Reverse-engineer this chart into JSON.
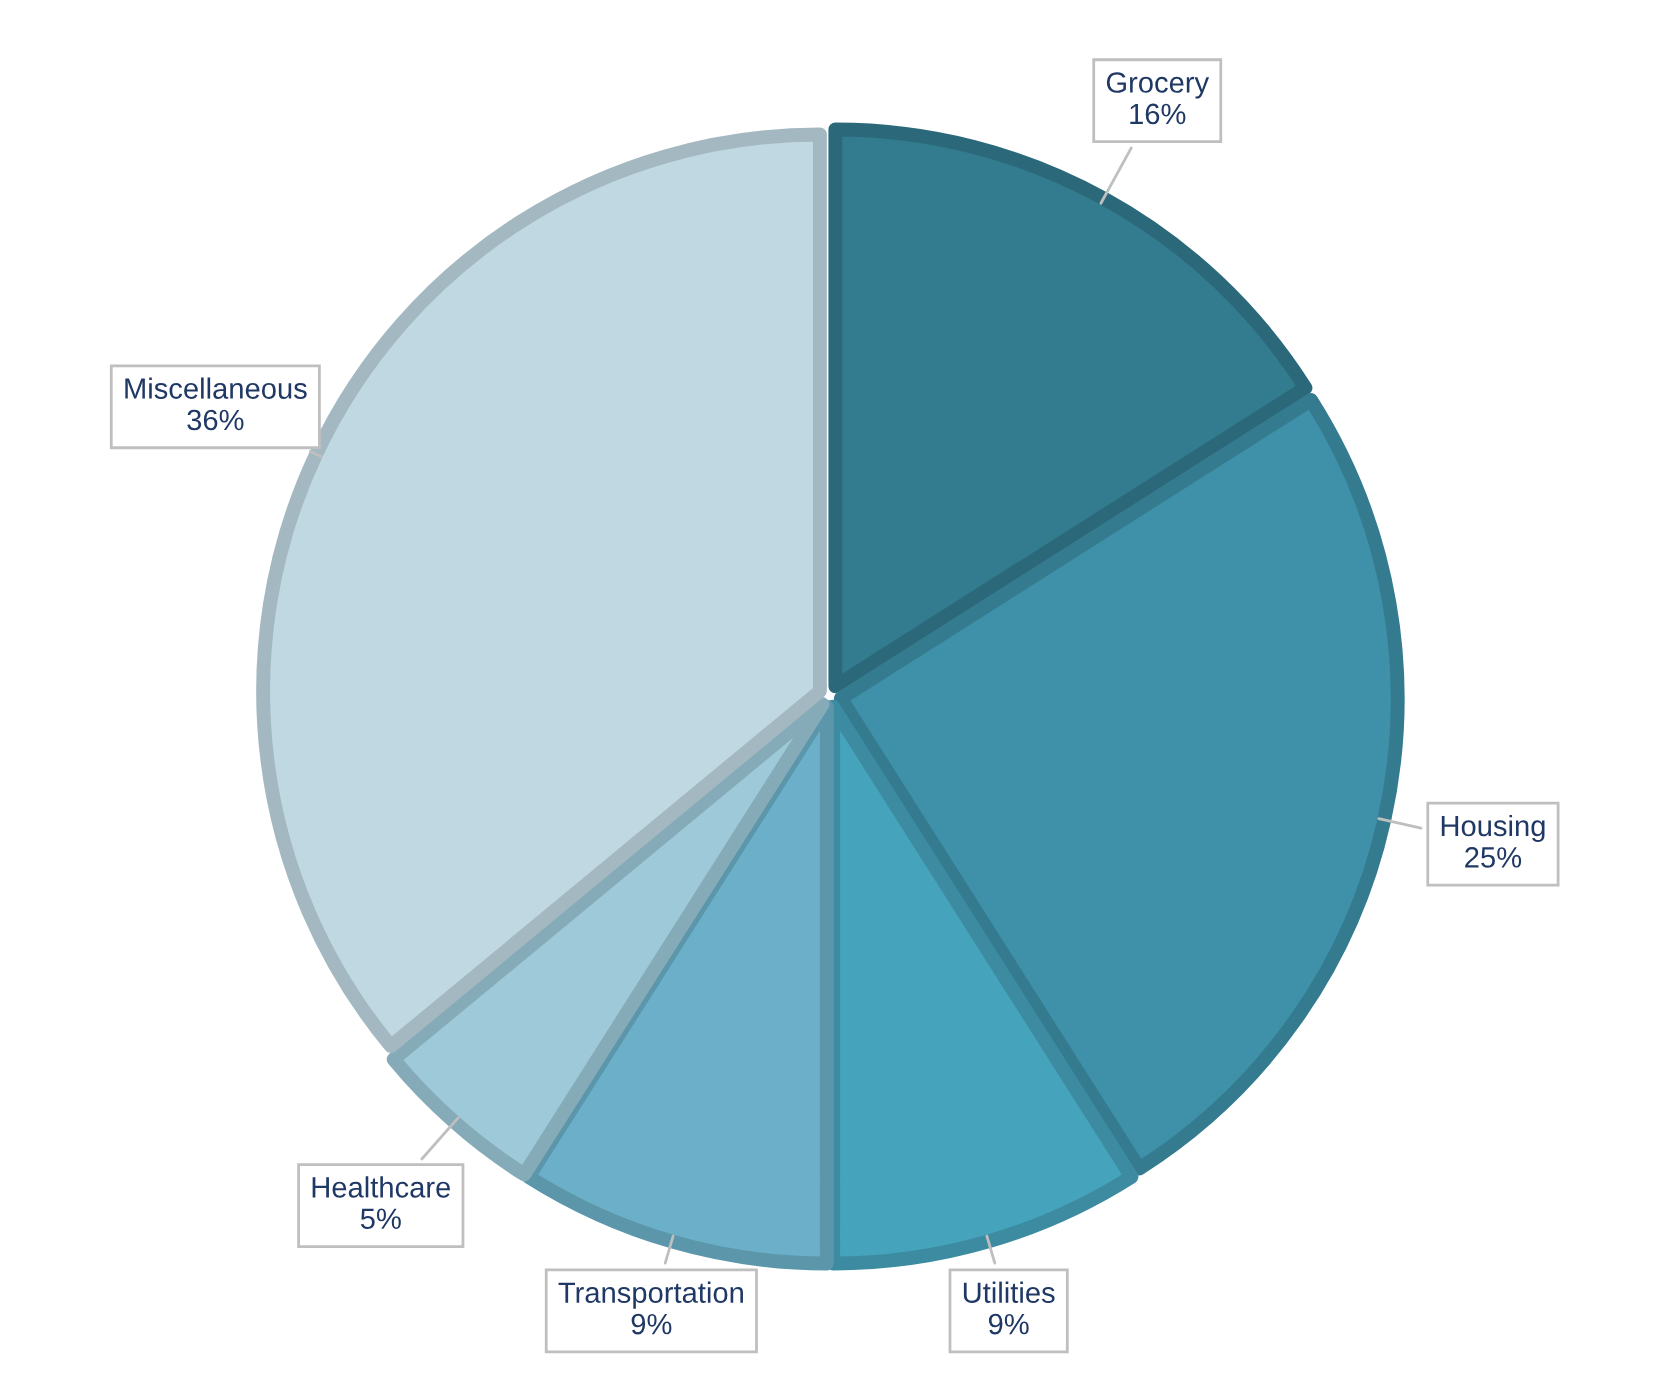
{
  "chart_data": {
    "type": "pie",
    "categories": [
      "Grocery",
      "Housing",
      "Utilities",
      "Transportation",
      "Healthcare",
      "Miscellaneous"
    ],
    "values": [
      16,
      25,
      9,
      9,
      5,
      36
    ],
    "colors": [
      "#337b8f",
      "#3e91a8",
      "#46a3bc",
      "#6bb0c8",
      "#9ec9d8",
      "#c0d8e2"
    ],
    "value_labels": [
      "16%",
      "25%",
      "9%",
      "9%",
      "5%",
      "36%"
    ]
  }
}
